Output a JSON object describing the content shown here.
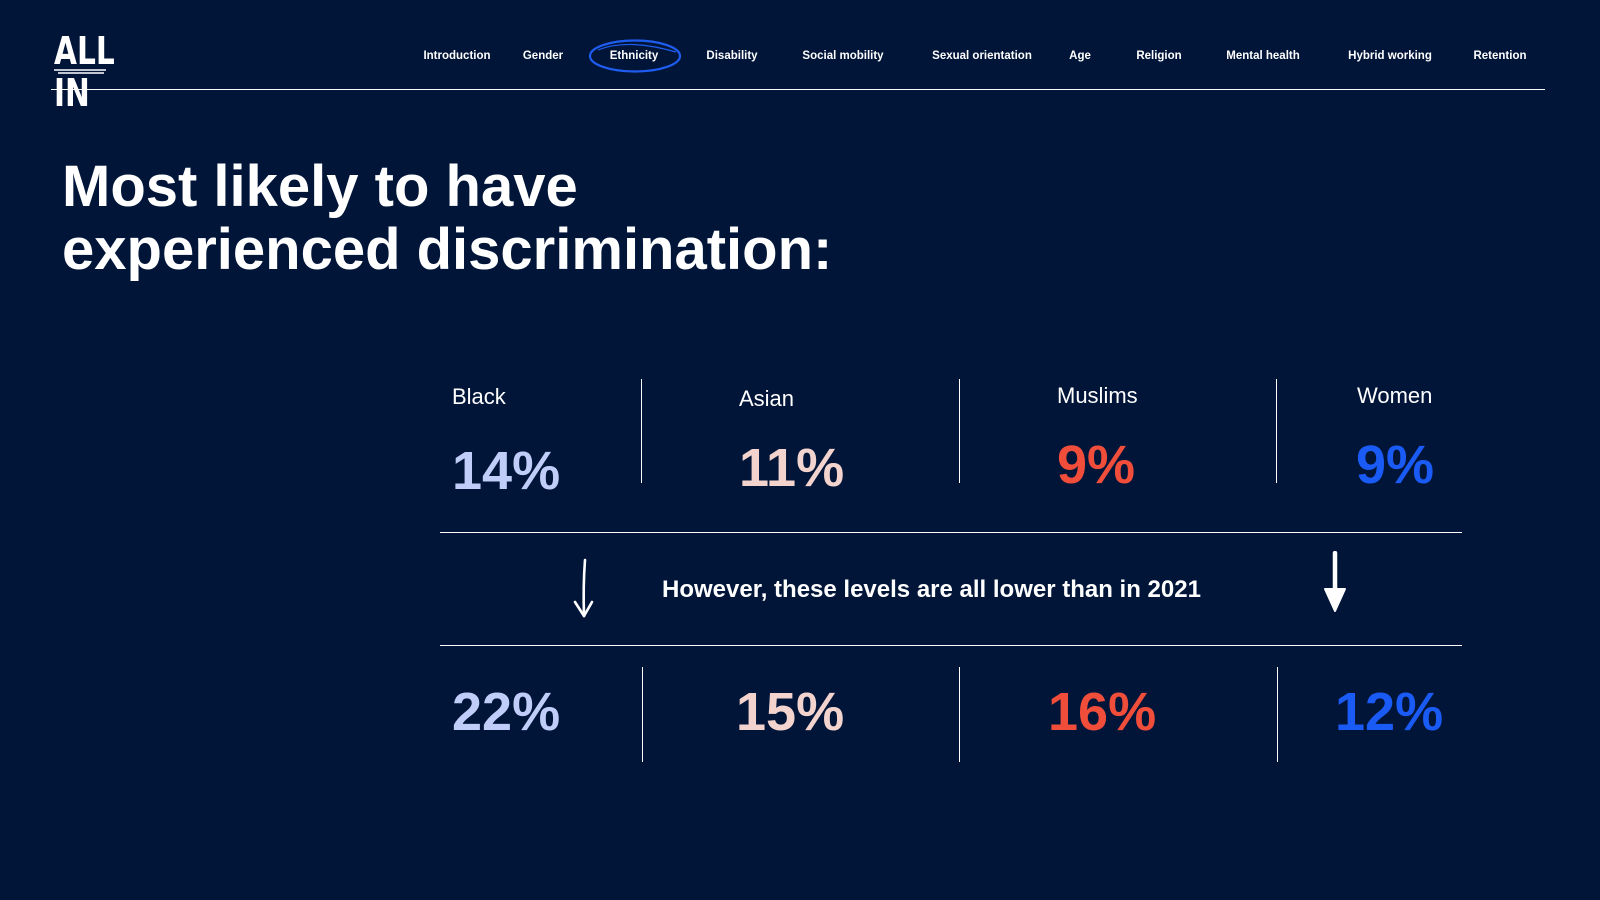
{
  "header": {
    "logo_text": "ALL IN",
    "nav": [
      {
        "label": "Introduction",
        "active": false
      },
      {
        "label": "Gender",
        "active": false
      },
      {
        "label": "Ethnicity",
        "active": true
      },
      {
        "label": "Disability",
        "active": false
      },
      {
        "label": "Social mobility",
        "active": false
      },
      {
        "label": "Sexual orientation",
        "active": false
      },
      {
        "label": "Age",
        "active": false
      },
      {
        "label": "Religion",
        "active": false
      },
      {
        "label": "Mental health",
        "active": false
      },
      {
        "label": "Hybrid working",
        "active": false
      },
      {
        "label": "Retention",
        "active": false
      }
    ]
  },
  "main": {
    "title_line1": "Most likely to have",
    "title_line2": "experienced discrimination:",
    "groups": [
      {
        "label": "Black",
        "current": "14%",
        "previous": "22%",
        "color": "#c0cdf8"
      },
      {
        "label": "Asian",
        "current": "11%",
        "previous": "15%",
        "color": "#f3d3cd"
      },
      {
        "label": "Muslims",
        "current": "9%",
        "previous": "16%",
        "color": "#f04d3a"
      },
      {
        "label": "Women",
        "current": "9%",
        "previous": "12%",
        "color": "#1a5af5"
      }
    ],
    "note": "However, these levels are all lower than in 2021"
  },
  "colors": {
    "background": "#011539",
    "text": "#ffffff",
    "active_nav_circle": "#1f5cf0"
  },
  "icons": {
    "left_arrow": "arrow-down-icon",
    "right_arrow": "arrow-down-icon"
  }
}
